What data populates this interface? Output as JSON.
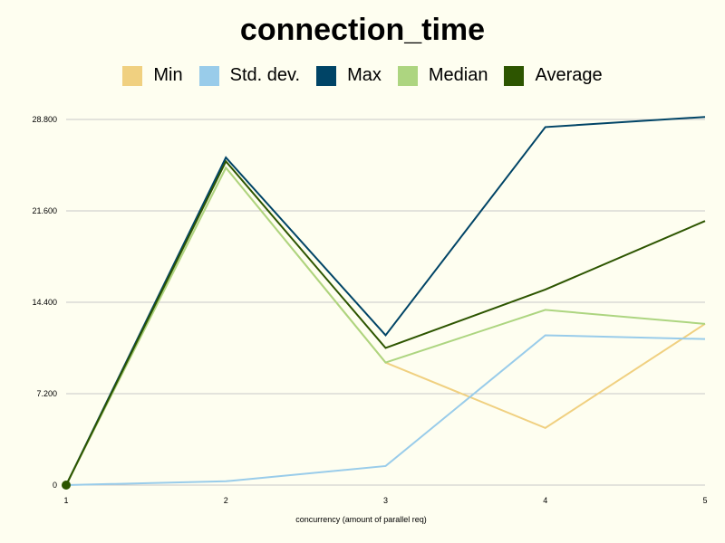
{
  "chart_data": {
    "type": "line",
    "title": "connection_time",
    "xlabel": "concurrency (amount of parallel req)",
    "ylabel": "",
    "x": [
      1,
      2,
      3,
      4,
      5
    ],
    "x_tick_labels": [
      "1",
      "2",
      "3",
      "4",
      "5"
    ],
    "ylim": [
      0,
      28800
    ],
    "y_ticks": [
      0,
      7200,
      14400,
      21600,
      28800
    ],
    "y_tick_labels": [
      "0",
      "7.200",
      "14.400",
      "21.600",
      "28.800"
    ],
    "grid": "horizontal",
    "legend_position": "top",
    "series": [
      {
        "name": "Min",
        "color": "#f0d080",
        "values": [
          0,
          25000,
          9650,
          4500,
          12700
        ]
      },
      {
        "name": "Std. dev.",
        "color": "#99ccea",
        "values": [
          0,
          300,
          1500,
          11800,
          11500
        ]
      },
      {
        "name": "Max",
        "color": "#004466",
        "values": [
          0,
          25800,
          11800,
          28200,
          29000
        ]
      },
      {
        "name": "Median",
        "color": "#add580",
        "values": [
          0,
          25000,
          9650,
          13800,
          12700
        ]
      },
      {
        "name": "Average",
        "color": "#2d5500",
        "values": [
          0,
          25500,
          10800,
          15400,
          20800
        ]
      }
    ]
  }
}
